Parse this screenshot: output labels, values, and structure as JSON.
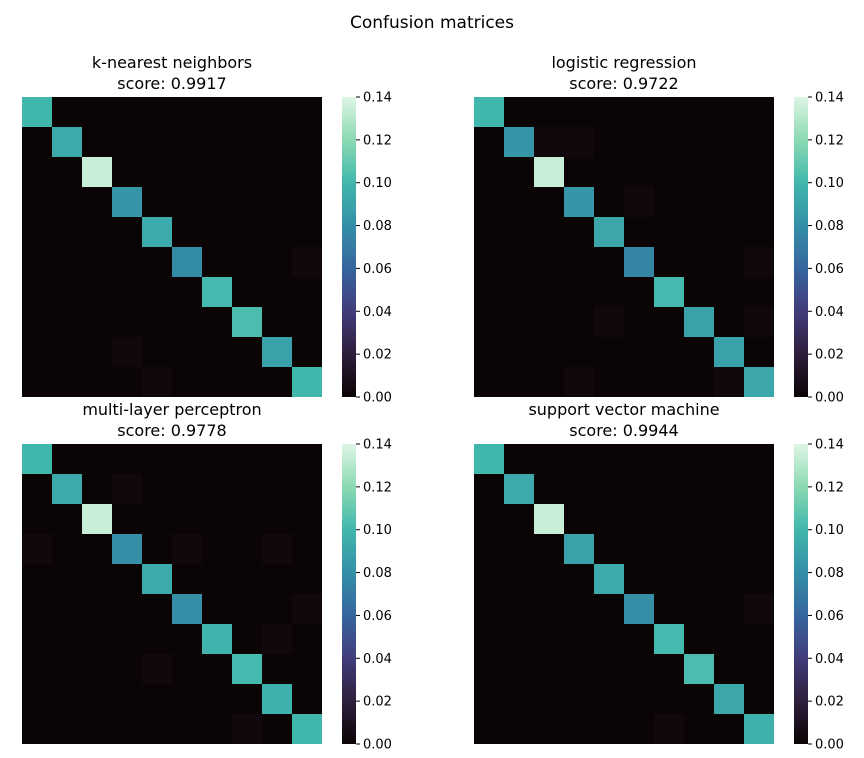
{
  "figure": {
    "title": "Confusion matrices"
  },
  "chart_data": [
    {
      "type": "heatmap",
      "title": "k-nearest neighbors",
      "score_label": "score: 0.9917",
      "colorbar": {
        "vmin": 0.0,
        "vmax": 0.14,
        "ticks": [
          "0.00",
          "0.02",
          "0.04",
          "0.06",
          "0.08",
          "0.10",
          "0.12",
          "0.14"
        ]
      },
      "matrix": [
        [
          0.1,
          0,
          0,
          0,
          0,
          0,
          0,
          0,
          0,
          0
        ],
        [
          0,
          0.093,
          0,
          0,
          0,
          0,
          0,
          0,
          0,
          0
        ],
        [
          0,
          0,
          0.135,
          0,
          0,
          0,
          0,
          0,
          0,
          0
        ],
        [
          0,
          0,
          0,
          0.083,
          0,
          0,
          0,
          0,
          0,
          0
        ],
        [
          0,
          0,
          0,
          0,
          0.094,
          0,
          0,
          0,
          0,
          0
        ],
        [
          0,
          0,
          0,
          0,
          0,
          0.078,
          0,
          0,
          0,
          0.003
        ],
        [
          0,
          0,
          0,
          0,
          0,
          0,
          0.101,
          0,
          0,
          0
        ],
        [
          0,
          0,
          0,
          0,
          0,
          0,
          0,
          0.103,
          0,
          0
        ],
        [
          0,
          0,
          0,
          0.003,
          0,
          0,
          0,
          0,
          0.089,
          0
        ],
        [
          0,
          0,
          0,
          0,
          0.003,
          0,
          0,
          0,
          0,
          0.1
        ]
      ]
    },
    {
      "type": "heatmap",
      "title": "logistic regression",
      "score_label": "score: 0.9722",
      "colorbar": {
        "vmin": 0.0,
        "vmax": 0.14,
        "ticks": [
          "0.00",
          "0.02",
          "0.04",
          "0.06",
          "0.08",
          "0.10",
          "0.12",
          "0.14"
        ]
      },
      "matrix": [
        [
          0.1,
          0,
          0,
          0,
          0,
          0,
          0,
          0,
          0,
          0
        ],
        [
          0,
          0.083,
          0.003,
          0.003,
          0,
          0,
          0,
          0,
          0,
          0
        ],
        [
          0,
          0,
          0.135,
          0,
          0,
          0,
          0,
          0,
          0,
          0
        ],
        [
          0,
          0,
          0,
          0.083,
          0,
          0.003,
          0,
          0,
          0,
          0
        ],
        [
          0,
          0,
          0,
          0,
          0.092,
          0,
          0,
          0,
          0,
          0
        ],
        [
          0,
          0,
          0,
          0,
          0,
          0.075,
          0,
          0,
          0,
          0.003
        ],
        [
          0,
          0,
          0,
          0,
          0,
          0,
          0.101,
          0,
          0,
          0
        ],
        [
          0,
          0,
          0,
          0,
          0.003,
          0,
          0,
          0.09,
          0,
          0.003
        ],
        [
          0,
          0,
          0,
          0,
          0,
          0,
          0,
          0,
          0.089,
          0
        ],
        [
          0,
          0,
          0,
          0.003,
          0,
          0,
          0,
          0,
          0.003,
          0.092
        ]
      ]
    },
    {
      "type": "heatmap",
      "title": "multi-layer perceptron",
      "score_label": "score: 0.9778",
      "colorbar": {
        "vmin": 0.0,
        "vmax": 0.14,
        "ticks": [
          "0.00",
          "0.02",
          "0.04",
          "0.06",
          "0.08",
          "0.10",
          "0.12",
          "0.14"
        ]
      },
      "matrix": [
        [
          0.1,
          0,
          0,
          0,
          0,
          0,
          0,
          0,
          0,
          0
        ],
        [
          0,
          0.093,
          0,
          0.003,
          0,
          0,
          0,
          0,
          0,
          0
        ],
        [
          0,
          0,
          0.135,
          0,
          0,
          0,
          0,
          0,
          0,
          0
        ],
        [
          0.003,
          0,
          0,
          0.08,
          0,
          0.003,
          0,
          0,
          0.003,
          0
        ],
        [
          0,
          0,
          0,
          0,
          0.094,
          0,
          0,
          0,
          0,
          0
        ],
        [
          0,
          0,
          0,
          0,
          0,
          0.08,
          0,
          0,
          0,
          0.003
        ],
        [
          0,
          0,
          0,
          0,
          0,
          0,
          0.098,
          0,
          0.003,
          0
        ],
        [
          0,
          0,
          0,
          0,
          0.003,
          0,
          0,
          0.101,
          0,
          0
        ],
        [
          0,
          0,
          0,
          0,
          0,
          0,
          0,
          0,
          0.097,
          0
        ],
        [
          0,
          0,
          0,
          0,
          0,
          0,
          0,
          0.003,
          0,
          0.1
        ]
      ]
    },
    {
      "type": "heatmap",
      "title": "support vector machine",
      "score_label": "score: 0.9944",
      "colorbar": {
        "vmin": 0.0,
        "vmax": 0.14,
        "ticks": [
          "0.00",
          "0.02",
          "0.04",
          "0.06",
          "0.08",
          "0.10",
          "0.12",
          "0.14"
        ]
      },
      "matrix": [
        [
          0.1,
          0,
          0,
          0,
          0,
          0,
          0,
          0,
          0,
          0
        ],
        [
          0,
          0.093,
          0,
          0,
          0,
          0,
          0,
          0,
          0,
          0
        ],
        [
          0,
          0,
          0.135,
          0,
          0,
          0,
          0,
          0,
          0,
          0
        ],
        [
          0,
          0,
          0,
          0.089,
          0,
          0,
          0,
          0,
          0,
          0
        ],
        [
          0,
          0,
          0,
          0,
          0.094,
          0,
          0,
          0,
          0,
          0
        ],
        [
          0,
          0,
          0,
          0,
          0,
          0.08,
          0,
          0,
          0,
          0.003
        ],
        [
          0,
          0,
          0,
          0,
          0,
          0,
          0.101,
          0,
          0,
          0
        ],
        [
          0,
          0,
          0,
          0,
          0,
          0,
          0,
          0.103,
          0,
          0
        ],
        [
          0,
          0,
          0,
          0,
          0,
          0,
          0,
          0,
          0.092,
          0
        ],
        [
          0,
          0,
          0,
          0,
          0,
          0,
          0.003,
          0,
          0,
          0.097
        ]
      ]
    }
  ],
  "colormap": {
    "name": "mako",
    "stops": [
      "#0b0405",
      "#2e1e3b",
      "#413d7b",
      "#37659e",
      "#348fa7",
      "#40b7ad",
      "#8bdab2",
      "#def5e5"
    ]
  }
}
